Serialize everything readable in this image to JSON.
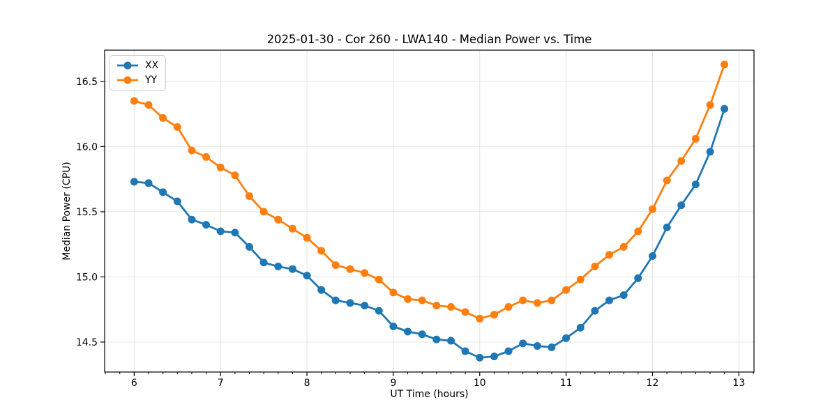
{
  "chart_data": {
    "type": "line",
    "title": "2025-01-30 - Cor 260 - LWA140 - Median Power vs. Time",
    "xlabel": "UT Time (hours)",
    "ylabel": "Median Power (CPU)",
    "xlim": [
      5.658,
      13.175
    ],
    "ylim": [
      14.27,
      16.74
    ],
    "x_tick_values": [
      6,
      7,
      8,
      9,
      10,
      11,
      12,
      13
    ],
    "x_tick_labels": [
      "6",
      "7",
      "8",
      "9",
      "10",
      "11",
      "12",
      "13"
    ],
    "x_minor_tick_step": 0.16667,
    "y_tick_values": [
      14.5,
      15.0,
      15.5,
      16.0,
      16.5
    ],
    "y_tick_labels": [
      "14.5",
      "15.0",
      "15.5",
      "16.0",
      "16.5"
    ],
    "grid": true,
    "legend_position": "upper left",
    "x": [
      6.0,
      6.167,
      6.333,
      6.5,
      6.667,
      6.833,
      7.0,
      7.167,
      7.333,
      7.5,
      7.667,
      7.833,
      8.0,
      8.167,
      8.333,
      8.5,
      8.667,
      8.833,
      9.0,
      9.167,
      9.333,
      9.5,
      9.667,
      9.833,
      10.0,
      10.167,
      10.333,
      10.5,
      10.667,
      10.833,
      11.0,
      11.167,
      11.333,
      11.5,
      11.667,
      11.833,
      12.0,
      12.167,
      12.333,
      12.5,
      12.667,
      12.833
    ],
    "series": [
      {
        "name": "XX",
        "color": "#1f77b4",
        "values": [
          15.73,
          15.72,
          15.65,
          15.58,
          15.44,
          15.4,
          15.35,
          15.34,
          15.23,
          15.11,
          15.08,
          15.06,
          15.01,
          14.9,
          14.82,
          14.8,
          14.78,
          14.74,
          14.62,
          14.58,
          14.56,
          14.52,
          14.51,
          14.43,
          14.38,
          14.39,
          14.43,
          14.49,
          14.47,
          14.46,
          14.53,
          14.61,
          14.74,
          14.82,
          14.86,
          14.99,
          15.16,
          15.38,
          15.55,
          15.71,
          15.96,
          16.29
        ]
      },
      {
        "name": "YY",
        "color": "#ff7f0e",
        "values": [
          16.35,
          16.32,
          16.22,
          16.15,
          15.97,
          15.92,
          15.84,
          15.78,
          15.62,
          15.5,
          15.44,
          15.37,
          15.3,
          15.2,
          15.09,
          15.06,
          15.03,
          14.98,
          14.88,
          14.83,
          14.82,
          14.78,
          14.77,
          14.73,
          14.68,
          14.71,
          14.77,
          14.82,
          14.8,
          14.82,
          14.9,
          14.98,
          15.08,
          15.17,
          15.23,
          15.35,
          15.52,
          15.74,
          15.89,
          16.06,
          16.32,
          16.63
        ]
      }
    ],
    "colors": {
      "grid": "#e4e4e4",
      "spine": "#000000",
      "tick": "#000000",
      "text": "#000000",
      "background": "#ffffff"
    }
  }
}
